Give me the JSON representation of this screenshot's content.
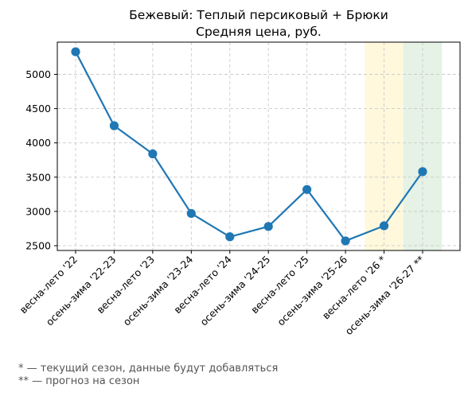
{
  "chart_data": {
    "type": "line",
    "title": "Бежевый: Теплый персиковый + Брюки",
    "subtitle": "Средняя цена, руб.",
    "categories": [
      "весна-лето '22",
      "осень-зима '22-23",
      "весна-лето '23",
      "осень-зима '23-24",
      "весна-лето '24",
      "осень-зима '24-25",
      "весна-лето '25",
      "осень-зима '25-26",
      "весна-лето '26 *",
      "осень-зима '26-27 **"
    ],
    "series": [
      {
        "values": [
          5330,
          4250,
          3840,
          2970,
          2630,
          2780,
          3320,
          2570,
          2790,
          3580
        ]
      }
    ],
    "yticks": [
      2500,
      3000,
      3500,
      4000,
      4500,
      5000
    ],
    "ylim": [
      2430,
      5470
    ],
    "grid": true,
    "highlights": [
      {
        "category_index": 8,
        "color": "#fff8dc"
      },
      {
        "category_index": 9,
        "color": "#e5f2e5"
      }
    ],
    "line_color": "#1f77b4"
  },
  "footnotes": {
    "current": "* — текущий сезон, данные будут добавляться",
    "forecast": "** — прогноз на сезон"
  }
}
